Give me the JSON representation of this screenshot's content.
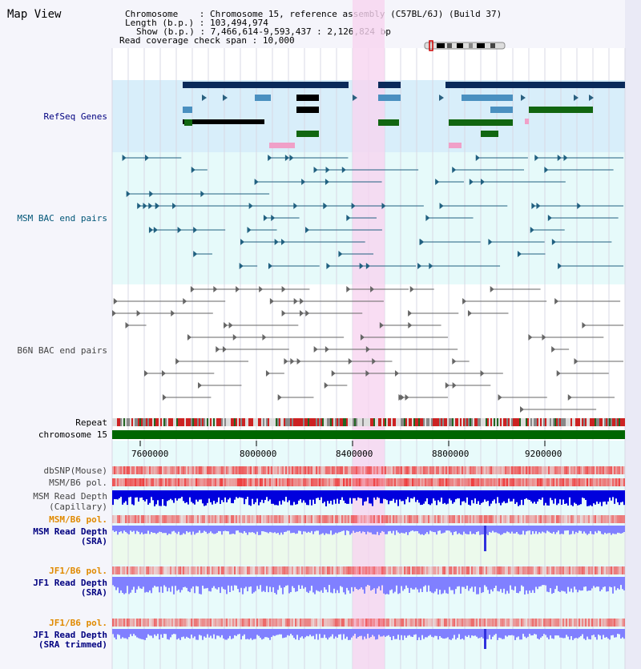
{
  "title": "Map View",
  "info": {
    "chromosome_label": "Chromosome",
    "chromosome_value": "Chromosome 15, reference assembly (C57BL/6J) (Build 37)",
    "length_label": "Length (b.p.)",
    "length_value": "103,494,974",
    "show_label": "Show (b.p.)",
    "show_value": "7,466,614-9,593,437 : 2,126,824 bp",
    "span_label": "Read coverage check span",
    "span_value": "10,000"
  },
  "tracks": {
    "refseq": "RefSeq Genes",
    "msm_bac": "MSM BAC end pairs",
    "b6n_bac": "B6N BAC end pairs",
    "repeat": "Repeat",
    "chromosome": "chromosome 15",
    "dbsnp": "dbSNP(Mouse)",
    "msm_b6_pol_1": "MSM/B6 pol.",
    "msm_depth_cap_1": "MSM Read Depth",
    "msm_depth_cap_2": "(Capillary)",
    "msm_b6_pol_2": "MSM/B6 pol.",
    "msm_depth_sra_1": "MSM Read Depth",
    "msm_depth_sra_2": "(SRA)",
    "jf1_b6_pol_1": "JF1/B6 pol.",
    "jf1_depth_sra_1": "JF1 Read Depth",
    "jf1_depth_sra_2": "(SRA)",
    "jf1_b6_pol_2": "JF1/B6 pol.",
    "jf1_depth_trim_1": "JF1 Read Depth",
    "jf1_depth_trim_2": "(SRA trimmed)"
  },
  "axis": {
    "ticks": [
      "7600000",
      "8000000",
      "8400000",
      "8800000",
      "9200000"
    ]
  },
  "colors": {
    "highlight": "#f8d4f0",
    "refseq_bg": "#d8eefa",
    "msm_bg": "#e6fafa",
    "chrom_bar": "#006600",
    "depth_capillary": "#0000dd",
    "depth_sra": "#8080ff",
    "polymorphism": "#ee3333"
  }
}
